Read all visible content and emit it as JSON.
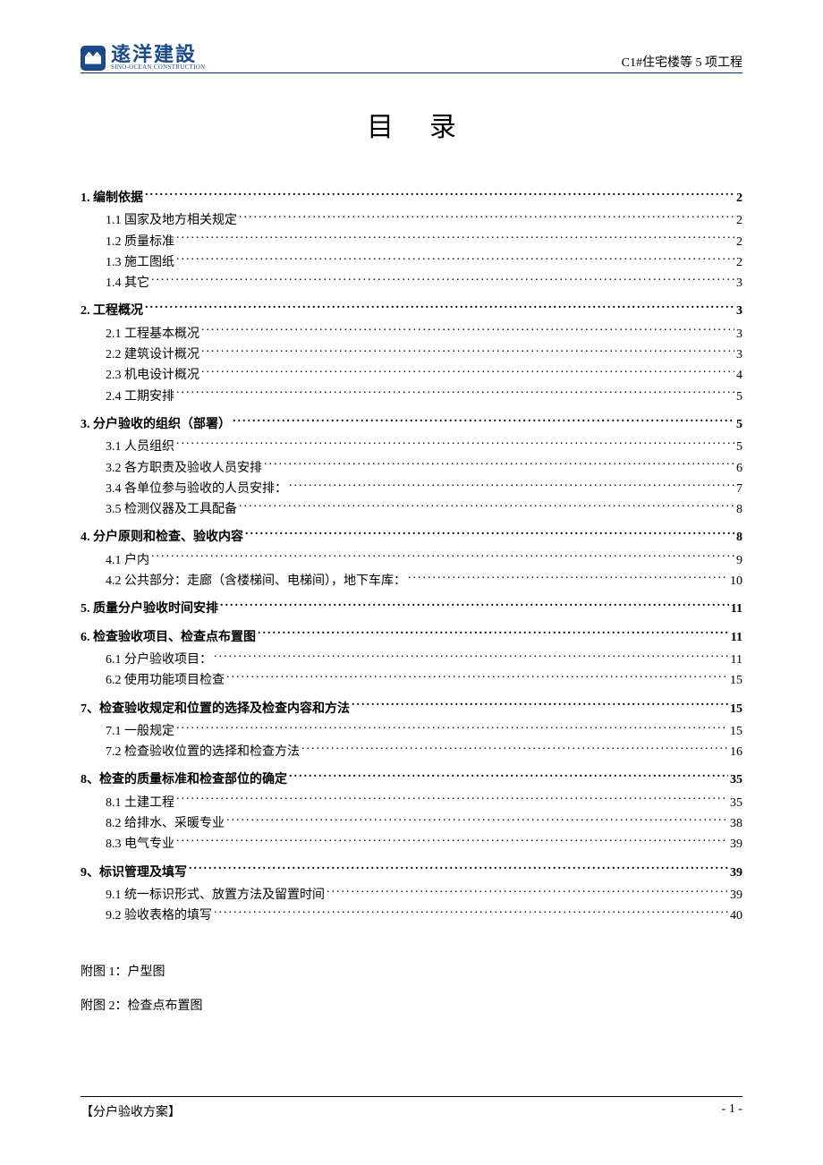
{
  "header": {
    "logo_cn": "逺洋建設",
    "logo_en": "SINO-OCEAN CONSTRUCTION",
    "right_text": "C1#住宅楼等 5 项工程"
  },
  "title": "目录",
  "toc": [
    {
      "level": 1,
      "label": "1.  编制依据",
      "page": "2"
    },
    {
      "level": 2,
      "label": "1.1 国家及地方相关规定",
      "page": "2"
    },
    {
      "level": 2,
      "label": "1.2 质量标准",
      "page": "2"
    },
    {
      "level": 2,
      "label": "1.3 施工图纸",
      "page": "2"
    },
    {
      "level": 2,
      "label": "1.4 其它",
      "page": "3"
    },
    {
      "level": 1,
      "label": "2.  工程概况",
      "page": "3"
    },
    {
      "level": 2,
      "label": "2.1 工程基本概况",
      "page": "3"
    },
    {
      "level": 2,
      "label": "2.2 建筑设计概况",
      "page": "3"
    },
    {
      "level": 2,
      "label": "2.3 机电设计概况",
      "page": "4"
    },
    {
      "level": 2,
      "label": "2.4 工期安排",
      "page": "5"
    },
    {
      "level": 1,
      "label": "3.  分户验收的组织（部署）",
      "page": "5"
    },
    {
      "level": 2,
      "label": "3.1 人员组织",
      "page": "5"
    },
    {
      "level": 2,
      "label": "3.2 各方职责及验收人员安排",
      "page": "6"
    },
    {
      "level": 2,
      "label": "3.4 各单位参与验收的人员安排：",
      "page": "7"
    },
    {
      "level": 2,
      "label": "3.5 检测仪器及工具配备",
      "page": "8"
    },
    {
      "level": 1,
      "label": "4.  分户原则和检查、验收内容",
      "page": "8"
    },
    {
      "level": 2,
      "label": "4.1 户内",
      "page": "9"
    },
    {
      "level": 2,
      "label": "4.2 公共部分：走廊（含楼梯间、电梯间），地下车库：",
      "page": "10"
    },
    {
      "level": 1,
      "label": "5.  质量分户验收时间安排",
      "page": "11"
    },
    {
      "level": 1,
      "label": "6. 检查验收项目、检查点布置图",
      "page": "11"
    },
    {
      "level": 2,
      "label": "6.1 分户验收项目：",
      "page": "11"
    },
    {
      "level": 2,
      "label": "6.2 使用功能项目检查",
      "page": "15"
    },
    {
      "level": 1,
      "label": "7、检查验收规定和位置的选择及检查内容和方法",
      "page": "15"
    },
    {
      "level": 2,
      "label": "7.1 一般规定",
      "page": "15"
    },
    {
      "level": 2,
      "label": "7.2 检查验收位置的选择和检查方法",
      "page": "16"
    },
    {
      "level": 1,
      "label": "8、检查的质量标准和检查部位的确定",
      "page": "35"
    },
    {
      "level": 2,
      "label": "8.1 土建工程",
      "page": "35"
    },
    {
      "level": 2,
      "label": "8.2 给排水、采暖专业",
      "page": "38"
    },
    {
      "level": 2,
      "label": "8.3 电气专业",
      "page": "39"
    },
    {
      "level": 1,
      "label": "9、标识管理及填写",
      "page": "39"
    },
    {
      "level": 2,
      "label": "9.1 统一标识形式、放置方法及留置时间",
      "page": "39"
    },
    {
      "level": 2,
      "label": "9.2 验收表格的填写",
      "page": "40"
    }
  ],
  "appendix": [
    "附图 1：户型图",
    "附图 2：检查点布置图"
  ],
  "footer": {
    "left": "【分户验收方案】",
    "right": "- 1 -"
  }
}
